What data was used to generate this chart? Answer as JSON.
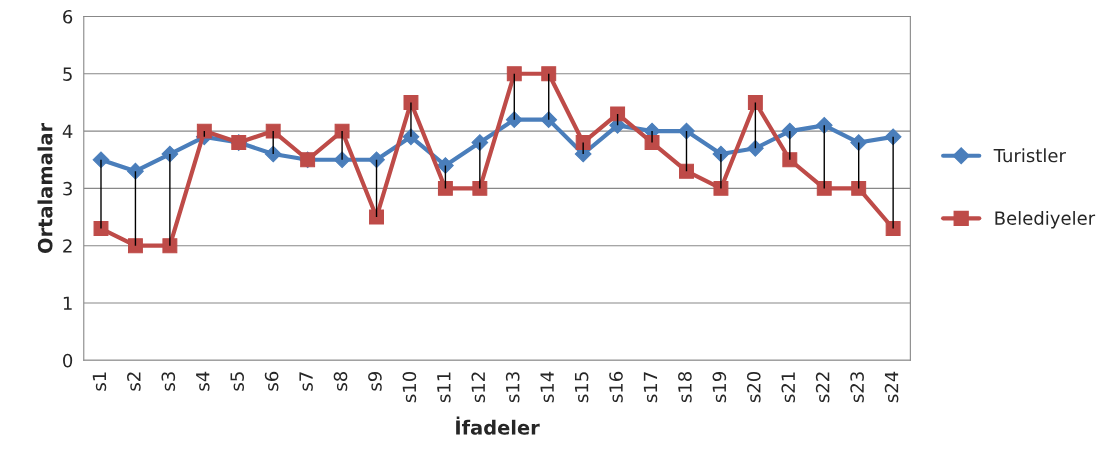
{
  "chart_data": {
    "type": "line",
    "xlabel": "İfadeler",
    "ylabel": "Ortalamalar",
    "categories": [
      "s1",
      "s2",
      "s3",
      "s4",
      "s5",
      "s6",
      "s7",
      "s8",
      "s9",
      "s10",
      "s11",
      "s12",
      "s13",
      "s14",
      "s15",
      "s16",
      "s17",
      "s18",
      "s19",
      "s20",
      "s21",
      "s22",
      "s23",
      "s24"
    ],
    "series": [
      {
        "name": "Turistler",
        "color": "#4a7ebb",
        "marker": "diamond",
        "values": [
          3.5,
          3.3,
          3.6,
          3.9,
          3.8,
          3.6,
          3.5,
          3.5,
          3.5,
          3.9,
          3.4,
          3.8,
          4.2,
          4.2,
          3.6,
          4.1,
          4.0,
          4.0,
          3.6,
          3.7,
          4.0,
          4.1,
          3.8,
          3.9
        ],
        "errors": [
          [
            2.3,
            3.5
          ],
          [
            2.0,
            3.3
          ],
          [
            2.0,
            3.6
          ],
          [
            3.9,
            4.0
          ],
          null,
          [
            3.6,
            4.0
          ],
          null,
          [
            3.5,
            4.0
          ],
          [
            2.5,
            3.5
          ],
          [
            3.9,
            4.5
          ],
          [
            3.0,
            3.4
          ],
          [
            3.0,
            3.8
          ],
          [
            4.2,
            5.0
          ],
          [
            4.2,
            5.0
          ],
          [
            3.6,
            3.8
          ],
          [
            4.1,
            4.3
          ],
          [
            3.8,
            4.0
          ],
          [
            3.3,
            4.0
          ],
          [
            3.0,
            3.6
          ],
          [
            3.7,
            4.5
          ],
          [
            3.5,
            4.0
          ],
          [
            3.0,
            4.1
          ],
          [
            3.0,
            3.8
          ],
          [
            2.3,
            3.9
          ]
        ]
      },
      {
        "name": "Belediyeler",
        "color": "#be4b48",
        "marker": "square",
        "values": [
          2.3,
          2.0,
          2.0,
          4.0,
          3.8,
          4.0,
          3.5,
          4.0,
          2.5,
          4.5,
          3.0,
          3.0,
          5.0,
          5.0,
          3.8,
          4.3,
          3.8,
          3.3,
          3.0,
          4.5,
          3.5,
          3.0,
          3.0,
          2.3
        ]
      }
    ],
    "ylim": [
      0,
      6
    ],
    "yticks": [
      0,
      1,
      2,
      3,
      4,
      5,
      6
    ],
    "grid": "y",
    "legend": "right",
    "line_style": "solid"
  }
}
